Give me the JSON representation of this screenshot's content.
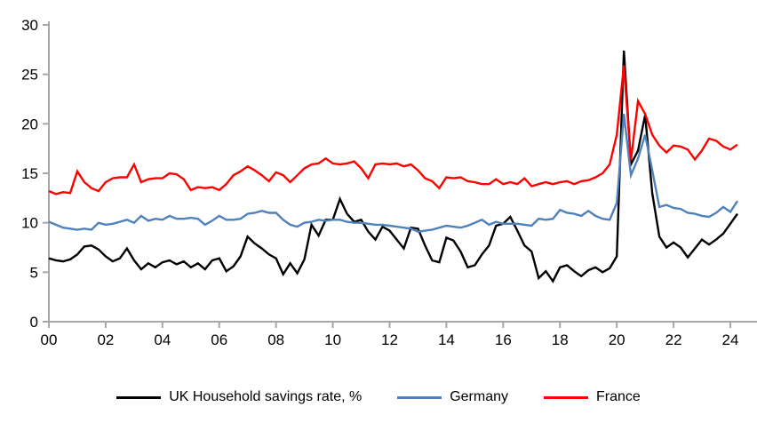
{
  "chart_data": {
    "type": "line",
    "title": "",
    "xlabel": "",
    "ylabel": "",
    "x_start": 2000,
    "x_step_years": 0.25,
    "x_unit": "quarterly",
    "ylim": [
      0,
      30
    ],
    "yticks": [
      0,
      5,
      10,
      15,
      20,
      25,
      30
    ],
    "xticks": [
      {
        "label": "00",
        "year": 2000
      },
      {
        "label": "02",
        "year": 2002
      },
      {
        "label": "04",
        "year": 2004
      },
      {
        "label": "06",
        "year": 2006
      },
      {
        "label": "08",
        "year": 2008
      },
      {
        "label": "10",
        "year": 2010
      },
      {
        "label": "12",
        "year": 2012
      },
      {
        "label": "14",
        "year": 2014
      },
      {
        "label": "16",
        "year": 2016
      },
      {
        "label": "18",
        "year": 2018
      },
      {
        "label": "20",
        "year": 2020
      },
      {
        "label": "22",
        "year": 2022
      },
      {
        "label": "24",
        "year": 2024
      }
    ],
    "grid": false,
    "legend_position": "bottom",
    "axis_color": "#a6a6a6",
    "series": [
      {
        "name": "UK Household savings rate, %",
        "color": "#000000",
        "values": [
          6.4,
          6.2,
          6.1,
          6.3,
          6.8,
          7.6,
          7.7,
          7.3,
          6.6,
          6.1,
          6.4,
          7.4,
          6.2,
          5.3,
          5.9,
          5.5,
          6.0,
          6.2,
          5.8,
          6.1,
          5.5,
          5.9,
          5.3,
          6.2,
          6.4,
          5.1,
          5.6,
          6.6,
          8.6,
          7.9,
          7.4,
          6.8,
          6.4,
          4.8,
          5.9,
          4.9,
          6.3,
          9.8,
          8.7,
          10.3,
          10.3,
          12.4,
          10.9,
          10.1,
          10.3,
          9.1,
          8.3,
          9.6,
          9.2,
          8.3,
          7.4,
          9.5,
          9.4,
          7.7,
          6.2,
          6.0,
          8.5,
          8.2,
          7.1,
          5.5,
          5.7,
          6.8,
          7.7,
          9.7,
          9.9,
          10.6,
          9.2,
          7.7,
          7.1,
          4.4,
          5.1,
          4.1,
          5.5,
          5.7,
          5.1,
          4.6,
          5.2,
          5.5,
          5.0,
          5.4,
          6.6,
          27.4,
          15.9,
          17.3,
          20.9,
          13.0,
          8.6,
          7.5,
          8.0,
          7.5,
          6.5,
          7.4,
          8.3,
          7.8,
          8.3,
          8.9,
          9.9,
          10.9
        ]
      },
      {
        "name": "Germany",
        "color": "#4f81bd",
        "values": [
          10.1,
          9.8,
          9.5,
          9.4,
          9.3,
          9.4,
          9.3,
          10.0,
          9.8,
          9.9,
          10.1,
          10.3,
          10.0,
          10.7,
          10.2,
          10.4,
          10.3,
          10.7,
          10.4,
          10.4,
          10.5,
          10.4,
          9.8,
          10.2,
          10.7,
          10.3,
          10.3,
          10.4,
          10.9,
          11.0,
          11.2,
          11.0,
          11.0,
          10.3,
          9.8,
          9.6,
          10.0,
          10.1,
          10.3,
          10.2,
          10.3,
          10.3,
          10.1,
          10.0,
          10.0,
          9.9,
          9.8,
          9.8,
          9.7,
          9.6,
          9.5,
          9.4,
          9.1,
          9.2,
          9.3,
          9.5,
          9.7,
          9.6,
          9.5,
          9.7,
          10.0,
          10.3,
          9.8,
          10.1,
          9.9,
          9.9,
          9.9,
          9.8,
          9.7,
          10.4,
          10.3,
          10.4,
          11.3,
          11.0,
          10.9,
          10.7,
          11.2,
          10.7,
          10.4,
          10.3,
          12.0,
          21.0,
          14.8,
          16.5,
          18.9,
          15.3,
          11.6,
          11.8,
          11.5,
          11.4,
          11.0,
          10.9,
          10.7,
          10.6,
          11.0,
          11.6,
          11.1,
          12.2
        ]
      },
      {
        "name": "France",
        "color": "#ff0000",
        "values": [
          13.2,
          12.9,
          13.1,
          13.0,
          15.2,
          14.1,
          13.5,
          13.2,
          14.1,
          14.5,
          14.6,
          14.6,
          15.9,
          14.1,
          14.4,
          14.5,
          14.5,
          15.0,
          14.9,
          14.4,
          13.3,
          13.6,
          13.5,
          13.6,
          13.3,
          13.9,
          14.8,
          15.2,
          15.7,
          15.3,
          14.8,
          14.2,
          15.1,
          14.8,
          14.1,
          14.8,
          15.5,
          15.9,
          16.0,
          16.5,
          16.0,
          15.9,
          16.0,
          16.2,
          15.5,
          14.5,
          15.9,
          16.0,
          15.9,
          16.0,
          15.7,
          15.9,
          15.3,
          14.5,
          14.2,
          13.5,
          14.6,
          14.5,
          14.6,
          14.2,
          14.1,
          13.9,
          13.9,
          14.4,
          13.9,
          14.1,
          13.9,
          14.5,
          13.7,
          13.9,
          14.1,
          13.9,
          14.1,
          14.2,
          13.9,
          14.2,
          14.3,
          14.6,
          15.0,
          15.9,
          18.9,
          25.9,
          16.3,
          22.3,
          21.0,
          18.9,
          17.8,
          17.1,
          17.8,
          17.7,
          17.4,
          16.4,
          17.3,
          18.5,
          18.3,
          17.7,
          17.4,
          17.9
        ]
      }
    ]
  },
  "legend": {
    "uk_label": "UK Household savings rate, %",
    "germany_label": "Germany",
    "france_label": "France"
  }
}
